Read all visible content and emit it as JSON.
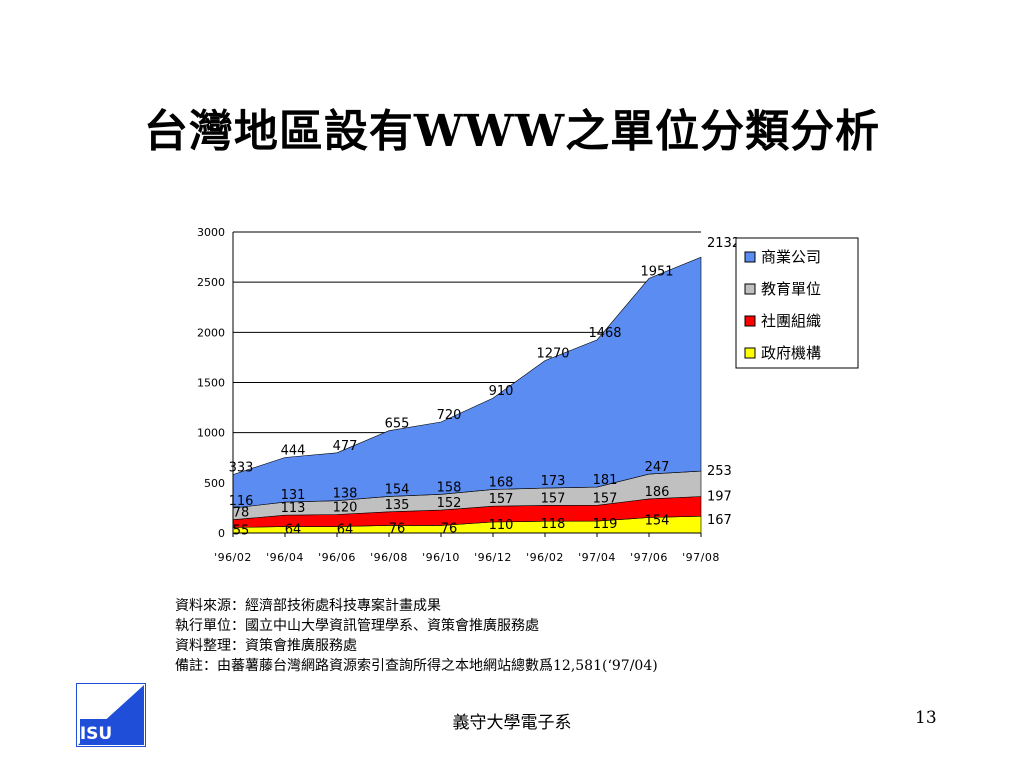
{
  "slide": {
    "title": "台灣地區設有WWW之單位分類分析",
    "notes": [
      "資料來源：經濟部技術處科技專案計畫成果",
      "執行單位：國立中山大學資訊管理學系、資策會推廣服務處",
      "資料整理：資策會推廣服務處",
      "備註：由蕃薯藤台灣網路資源索引查詢所得之本地網站總數爲12,581(‘97/04)"
    ],
    "footer": "義守大學電子系",
    "page_number": "13",
    "logo_text": "ISU"
  },
  "chart_data": {
    "type": "area",
    "stacked": true,
    "categories": [
      "'96/02",
      "'96/04",
      "'96/06",
      "'96/08",
      "'96/10",
      "'96/12",
      "'96/02",
      "'97/04",
      "'97/06",
      "'97/08"
    ],
    "series": [
      {
        "name": "政府機構",
        "values": [
          55,
          64,
          64,
          76,
          76,
          110,
          118,
          119,
          154,
          167
        ],
        "color": "#ffff00"
      },
      {
        "name": "社團組織",
        "values": [
          78,
          113,
          120,
          135,
          152,
          157,
          157,
          157,
          186,
          197
        ],
        "color": "#ff0000"
      },
      {
        "name": "教育單位",
        "values": [
          116,
          131,
          138,
          154,
          158,
          168,
          173,
          181,
          247,
          253
        ],
        "color": "#c0c0c0"
      },
      {
        "name": "商業公司",
        "values": [
          333,
          444,
          477,
          655,
          720,
          910,
          1270,
          1468,
          1951,
          2132
        ],
        "color": "#5b8cf2"
      }
    ],
    "legend_order": [
      "商業公司",
      "教育單位",
      "社團組織",
      "政府機構"
    ],
    "legend_position": "right",
    "ylim": [
      0,
      3000
    ],
    "yticks": [
      0,
      500,
      1000,
      1500,
      2000,
      2500,
      3000
    ],
    "grid": true,
    "title": "",
    "xlabel": "",
    "ylabel": ""
  }
}
